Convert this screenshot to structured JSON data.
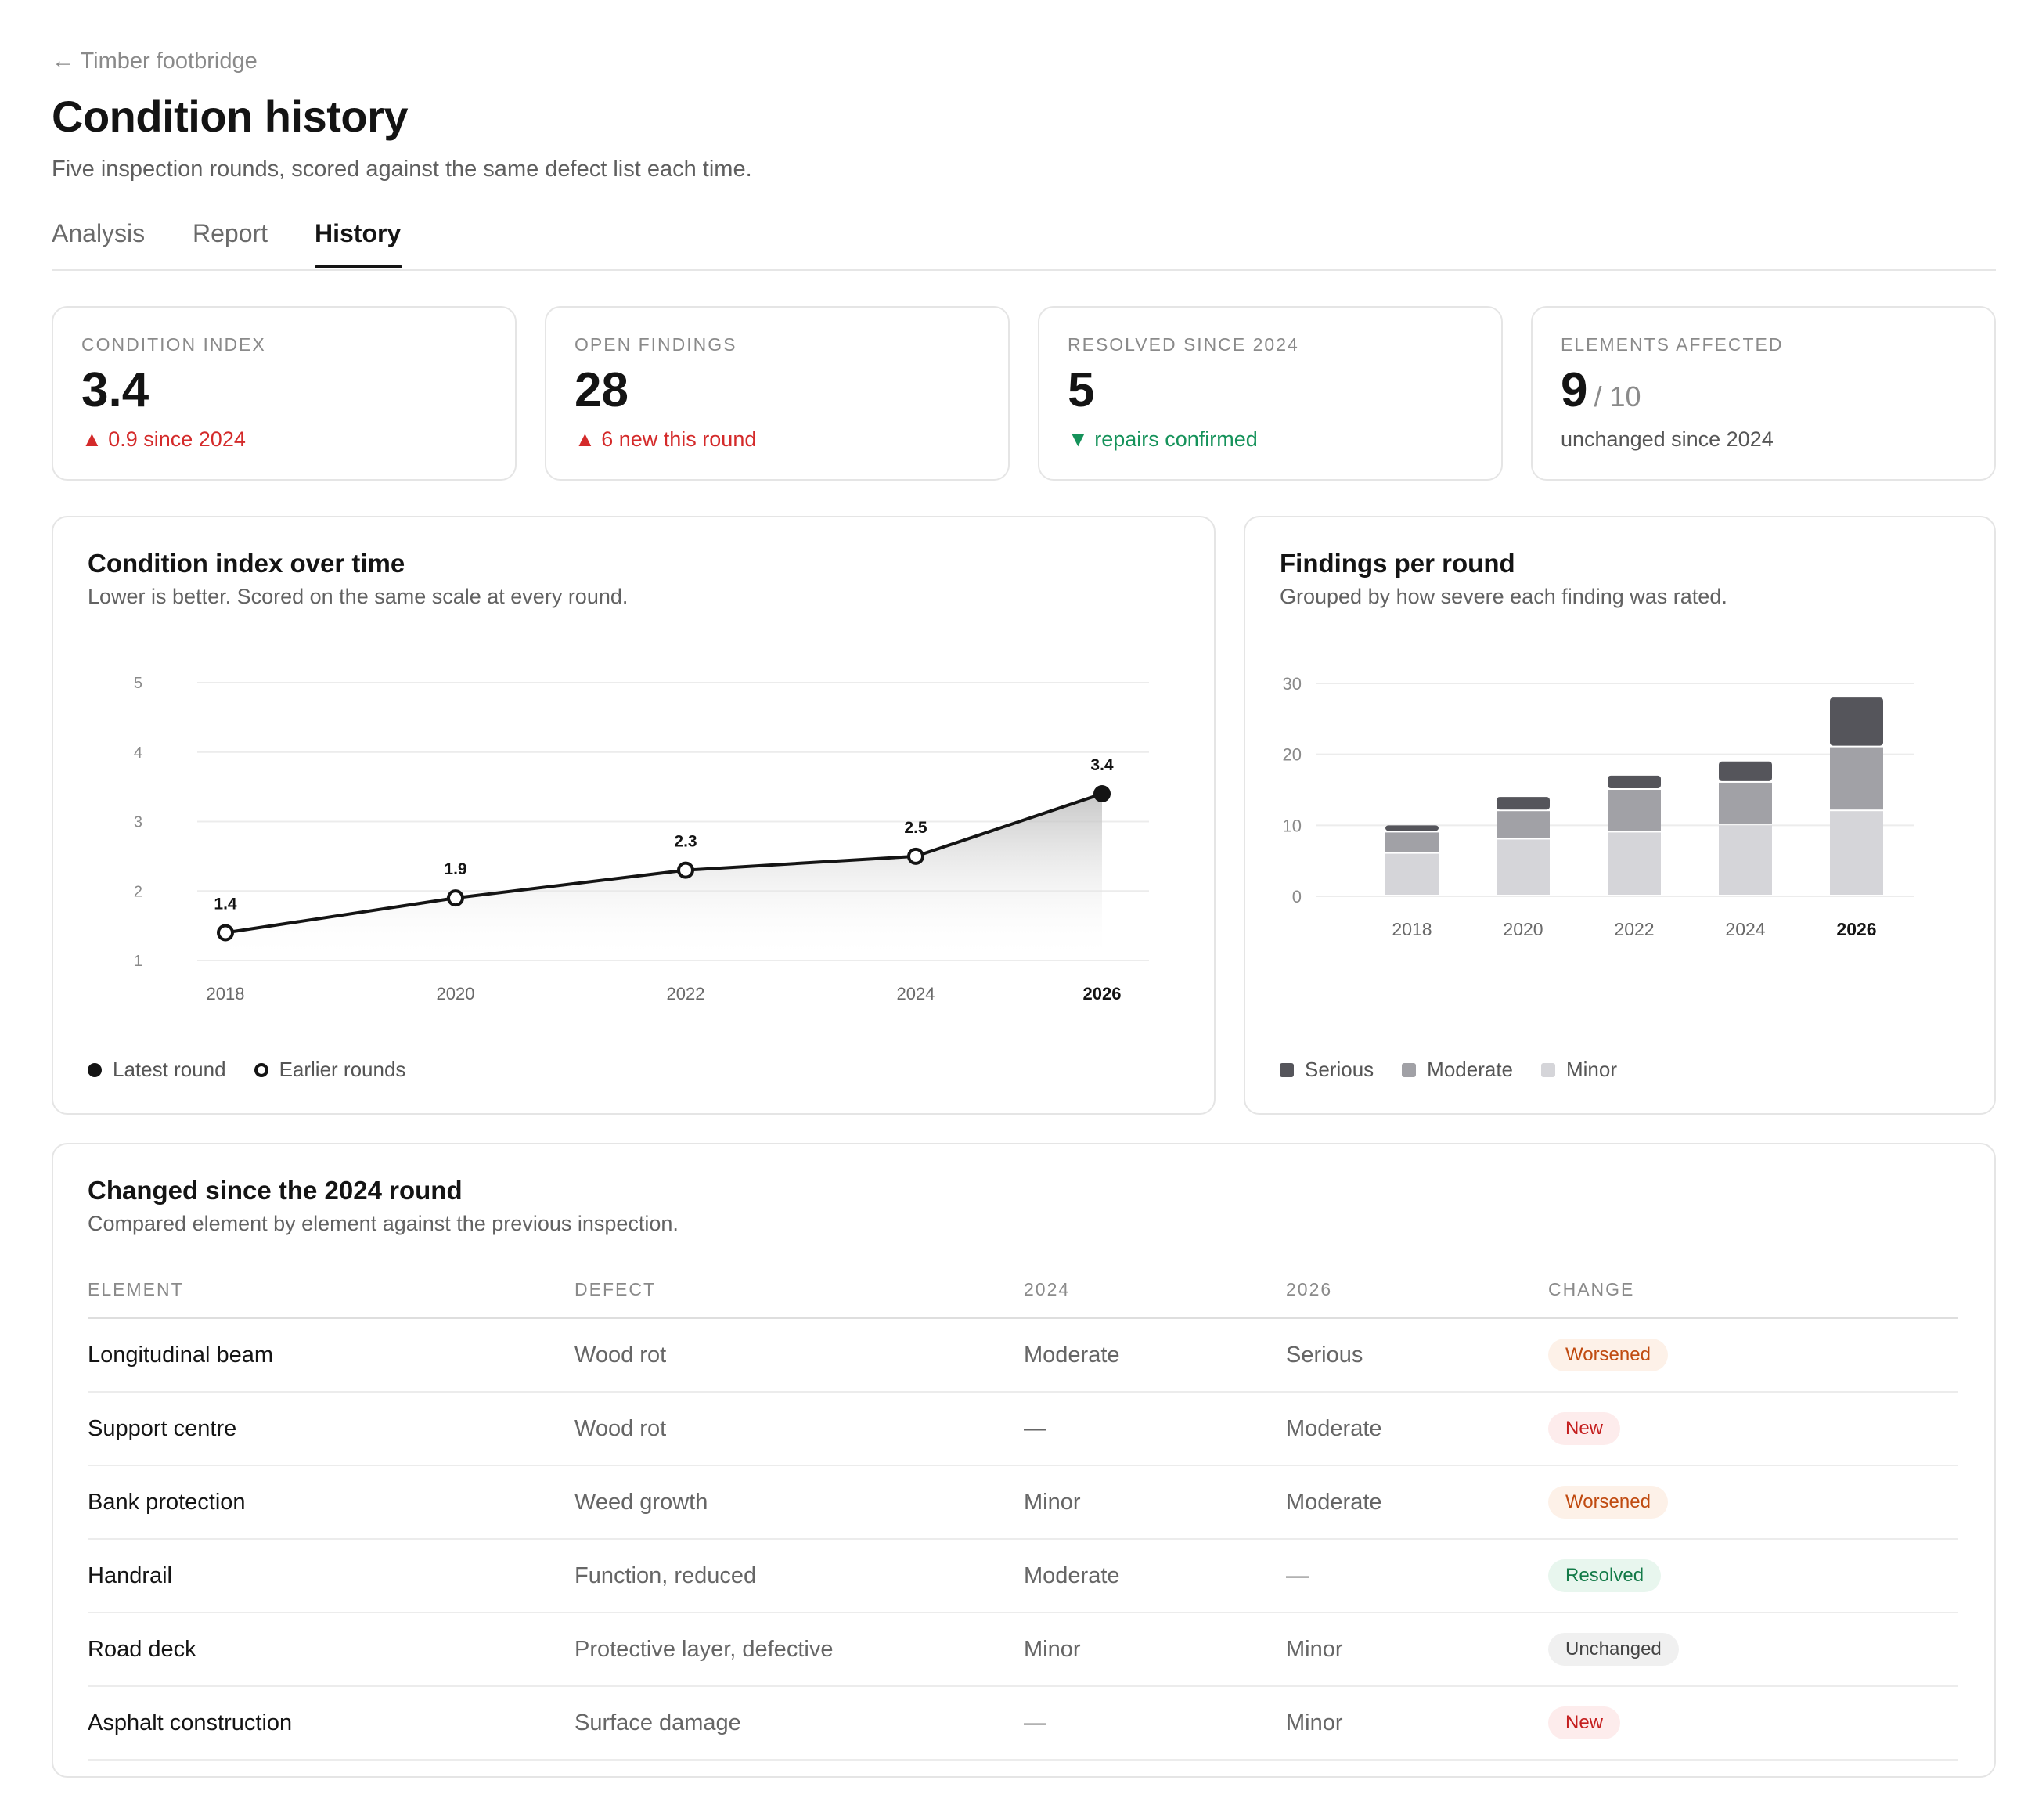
{
  "header": {
    "back_label": "← Timber footbridge",
    "title": "Condition history",
    "subtitle": "Five inspection rounds, scored against the same defect list each time."
  },
  "tabs": [
    {
      "label": "Analysis",
      "active": false
    },
    {
      "label": "Report",
      "active": false
    },
    {
      "label": "History",
      "active": true
    }
  ],
  "kpis": [
    {
      "label": "Condition index",
      "value": "3.4",
      "sub": "▲ 0.9 since 2024",
      "tone": "red"
    },
    {
      "label": "Open findings",
      "value": "28",
      "sub": "▲ 6 new this round",
      "tone": "red"
    },
    {
      "label": "Resolved since 2024",
      "value": "5",
      "sub": "▼ repairs confirmed",
      "tone": "green"
    },
    {
      "label": "Elements affected",
      "value": "9",
      "total": "/ 10",
      "sub": "unchanged since 2024",
      "tone": "neutral"
    }
  ],
  "line_panel": {
    "title": "Condition index over time",
    "subtitle": "Lower is better. Scored on the same scale at every round.",
    "legend": {
      "latest": "Latest round",
      "earlier": "Earlier rounds"
    }
  },
  "bar_panel": {
    "title": "Findings per round",
    "subtitle": "Grouped by how severe each finding was rated.",
    "legend": {
      "serious": "Serious",
      "moderate": "Moderate",
      "minor": "Minor"
    }
  },
  "chart_data": [
    {
      "type": "line",
      "title": "Condition index over time",
      "x": [
        "2018",
        "2020",
        "2022",
        "2024",
        "2026"
      ],
      "values": [
        1.4,
        1.9,
        2.3,
        2.5,
        3.4
      ],
      "data_labels": [
        "1.4",
        "1.9",
        "2.3",
        "2.5",
        "3.4"
      ],
      "yticks": [
        "1",
        "2",
        "3",
        "4",
        "5"
      ],
      "ylim": [
        1,
        5
      ],
      "highlight": "2026",
      "grid": true
    },
    {
      "type": "bar",
      "stacked": true,
      "title": "Findings per round",
      "categories": [
        "2018",
        "2020",
        "2022",
        "2024",
        "2026"
      ],
      "yticks": [
        "0",
        "10",
        "20",
        "30"
      ],
      "ylim": [
        0,
        30
      ],
      "highlight": "2026",
      "series": [
        {
          "name": "Minor",
          "values": [
            6,
            8,
            9,
            10,
            12
          ],
          "color": "#d5d5d9"
        },
        {
          "name": "Moderate",
          "values": [
            3,
            4,
            6,
            6,
            9
          ],
          "color": "#a1a1a6"
        },
        {
          "name": "Serious",
          "values": [
            1,
            2,
            2,
            3,
            7
          ],
          "color": "#55555b"
        }
      ],
      "grid": true,
      "legend": "bottom-left"
    }
  ],
  "changes": {
    "title": "Changed since the 2024 round",
    "subtitle": "Compared element by element against the previous inspection.",
    "headers": [
      "ELEMENT",
      "DEFECT",
      "2024",
      "2026",
      "CHANGE"
    ],
    "rows": [
      {
        "element": "Longitudinal beam",
        "defect": "Wood rot",
        "y2024": "Moderate",
        "y2026": "Serious",
        "change": "Worsened",
        "kind": "worse"
      },
      {
        "element": "Support centre",
        "defect": "Wood rot",
        "y2024": "—",
        "y2026": "Moderate",
        "change": "New",
        "kind": "new"
      },
      {
        "element": "Bank protection",
        "defect": "Weed growth",
        "y2024": "Minor",
        "y2026": "Moderate",
        "change": "Worsened",
        "kind": "worse"
      },
      {
        "element": "Handrail",
        "defect": "Function, reduced",
        "y2024": "Moderate",
        "y2026": "—",
        "change": "Resolved",
        "kind": "res"
      },
      {
        "element": "Road deck",
        "defect": "Protective layer, defective",
        "y2024": "Minor",
        "y2026": "Minor",
        "change": "Unchanged",
        "kind": "unch"
      },
      {
        "element": "Asphalt construction",
        "defect": "Surface damage",
        "y2024": "—",
        "y2026": "Minor",
        "change": "New",
        "kind": "new"
      }
    ]
  }
}
